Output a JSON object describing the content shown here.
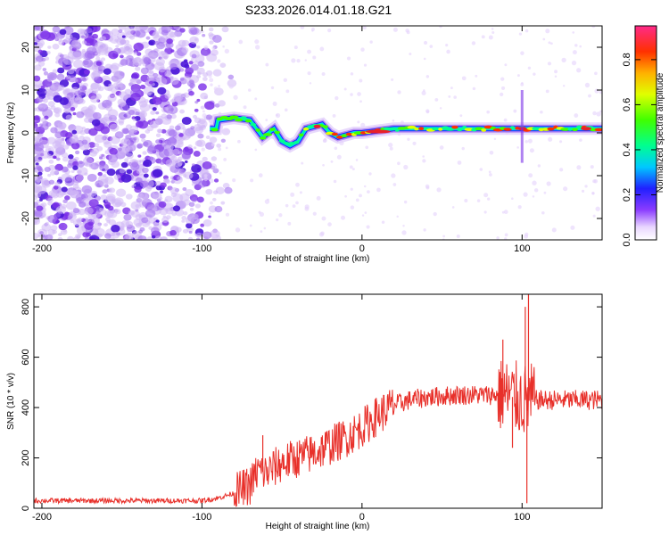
{
  "chart_data": [
    {
      "type": "heatmap",
      "title": "S233.2026.014.01.18.G21",
      "xlabel": "Height of straight line (km)",
      "ylabel": "Frequency (Hz)",
      "xlim": [
        -205,
        150
      ],
      "ylim": [
        -25,
        25
      ],
      "xticks": [
        -200,
        -100,
        0,
        100
      ],
      "yticks": [
        -20,
        -10,
        0,
        10,
        20
      ],
      "colorbar": {
        "label": "Normalized spectral amplitude",
        "range": [
          0,
          0.95
        ],
        "ticks": [
          0.0,
          0.2,
          0.4,
          0.6,
          0.8
        ]
      },
      "signal_track": {
        "description_points_x": [
          -90,
          -80,
          -70,
          -62,
          -55,
          -50,
          -45,
          -40,
          -35,
          -30,
          -25,
          -20,
          -15,
          -10,
          -5,
          0,
          10,
          20,
          40,
          60,
          80,
          100,
          120,
          150
        ],
        "freq_y": [
          3,
          3.5,
          3,
          -1,
          1,
          -2,
          -3,
          -2,
          1,
          1.5,
          2,
          0,
          -1,
          -0.5,
          0,
          0,
          0.5,
          1,
          1,
          1,
          1,
          1,
          1,
          1
        ]
      }
    },
    {
      "type": "line",
      "xlabel": "Height of straight line (km)",
      "ylabel": "SNR (10 * v/v)",
      "xlim": [
        -205,
        150
      ],
      "ylim": [
        0,
        850
      ],
      "xticks": [
        -200,
        -100,
        0,
        100
      ],
      "yticks": [
        0,
        200,
        400,
        600,
        800
      ],
      "series": [
        {
          "name": "SNR",
          "color": "#e8302a",
          "envelope_x": [
            -205,
            -120,
            -100,
            -90,
            -80,
            -70,
            -65,
            -60,
            -55,
            -50,
            -40,
            -30,
            -20,
            -10,
            0,
            10,
            20,
            30,
            40,
            60,
            80,
            90,
            95,
            100,
            105,
            110,
            120,
            150
          ],
          "envelope_y": [
            30,
            30,
            30,
            40,
            60,
            90,
            150,
            140,
            160,
            180,
            200,
            220,
            250,
            280,
            320,
            370,
            410,
            430,
            440,
            450,
            450,
            450,
            440,
            430,
            430,
            430,
            430,
            430
          ],
          "spikes": [
            {
              "x": -62,
              "y": 290
            },
            {
              "x": 88,
              "y": 670
            },
            {
              "x": 102,
              "y": 800
            },
            {
              "x": 104,
              "y": 850
            },
            {
              "x": 103,
              "y": 20
            },
            {
              "x": 94,
              "y": 240
            }
          ]
        }
      ]
    }
  ]
}
